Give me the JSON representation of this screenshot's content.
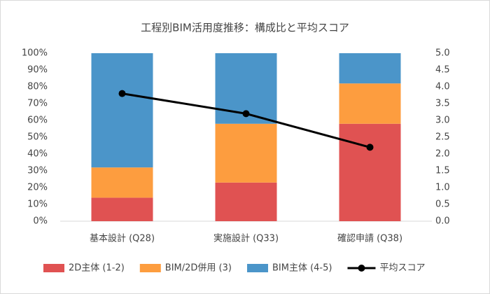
{
  "chart_data": {
    "type": "bar",
    "stacked": true,
    "title": "工程別BIM活用度推移：構成比と平均スコア",
    "categories": [
      "基本設計 (Q28)",
      "実施設計 (Q33)",
      "確認申請 (Q38)"
    ],
    "series": [
      {
        "name": "2D主体 (1-2)",
        "color": "#e05252",
        "values": [
          14,
          23,
          58
        ]
      },
      {
        "name": "BIM/2D併用 (3)",
        "color": "#fd9d3f",
        "values": [
          18,
          35,
          24
        ]
      },
      {
        "name": "BIM主体 (4-5)",
        "color": "#4b95c9",
        "values": [
          68,
          42,
          18
        ]
      },
      {
        "name": "平均スコア",
        "type": "line",
        "axis": "y2",
        "color": "#000000",
        "values": [
          3.8,
          3.2,
          2.2
        ]
      }
    ],
    "ylim": [
      0,
      100
    ],
    "yticks": [
      {
        "value": 0,
        "label": "0%"
      },
      {
        "value": 10,
        "label": "10%"
      },
      {
        "value": 20,
        "label": "20%"
      },
      {
        "value": 30,
        "label": "30%"
      },
      {
        "value": 40,
        "label": "40%"
      },
      {
        "value": 50,
        "label": "50%"
      },
      {
        "value": 60,
        "label": "60%"
      },
      {
        "value": 70,
        "label": "70%"
      },
      {
        "value": 80,
        "label": "80%"
      },
      {
        "value": 90,
        "label": "90%"
      },
      {
        "value": 100,
        "label": "100%"
      }
    ],
    "y2lim": [
      0,
      5
    ],
    "y2ticks": [
      {
        "value": 0,
        "label": "0.0"
      },
      0.5,
      {
        "value": 1,
        "label": "1.0"
      },
      1.5,
      {
        "value": 2,
        "label": "2.0"
      },
      2.5,
      {
        "value": 3,
        "label": "3.0"
      },
      3.5,
      {
        "value": 4,
        "label": "4.0"
      },
      4.5,
      {
        "value": 5,
        "label": "5.0"
      }
    ],
    "grid": false,
    "legend": "bottom"
  }
}
